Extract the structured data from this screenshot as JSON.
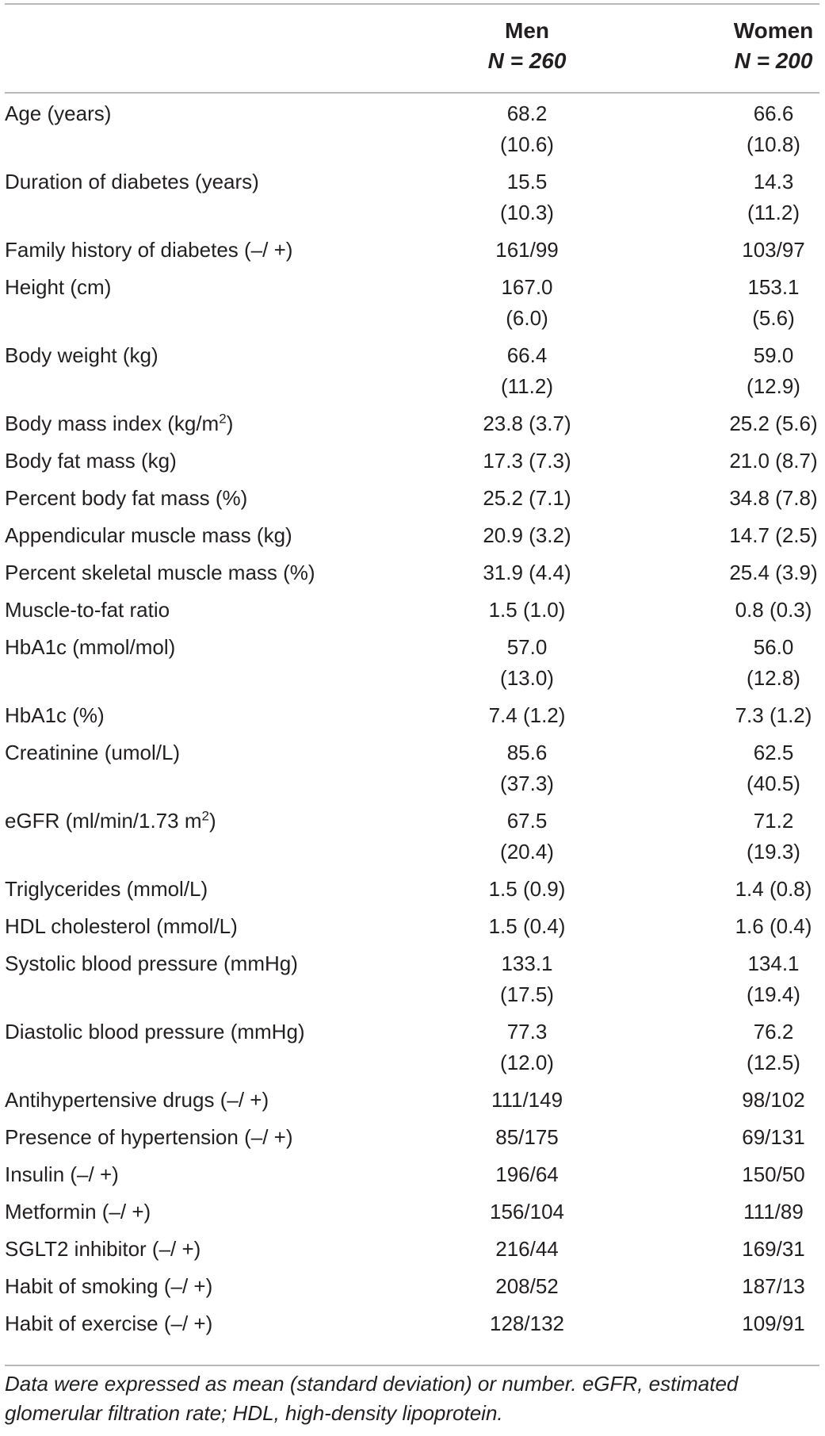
{
  "header": {
    "men_label": "Men",
    "men_n": "N = 260",
    "women_label": "Women",
    "women_n": "N = 200"
  },
  "rows": [
    {
      "label": "Age (years)",
      "men": "68.2\n(10.6)",
      "women": "66.6\n(10.8)"
    },
    {
      "label": "Duration of diabetes (years)",
      "men": "15.5\n(10.3)",
      "women": "14.3\n(11.2)"
    },
    {
      "label": "Family history of diabetes (–/ +)",
      "men": "161/99",
      "women": "103/97"
    },
    {
      "label": "Height (cm)",
      "men": "167.0\n(6.0)",
      "women": "153.1\n(5.6)"
    },
    {
      "label": "Body weight (kg)",
      "men": "66.4\n(11.2)",
      "women": "59.0\n(12.9)"
    },
    {
      "label": "Body mass index (kg/m",
      "sup": "2",
      "label_after": ")",
      "men": "23.8 (3.7)",
      "women": "25.2 (5.6)"
    },
    {
      "label": "Body fat mass (kg)",
      "men": "17.3 (7.3)",
      "women": "21.0 (8.7)"
    },
    {
      "label": "Percent body fat mass (%)",
      "men": "25.2 (7.1)",
      "women": "34.8 (7.8)"
    },
    {
      "label": "Appendicular muscle mass (kg)",
      "men": "20.9 (3.2)",
      "women": "14.7 (2.5)"
    },
    {
      "label": "Percent skeletal muscle mass (%)",
      "men": "31.9 (4.4)",
      "women": "25.4 (3.9)"
    },
    {
      "label": "Muscle-to-fat ratio",
      "men": "1.5 (1.0)",
      "women": "0.8 (0.3)"
    },
    {
      "label": "HbA1c (mmol/mol)",
      "men": "57.0\n(13.0)",
      "women": "56.0\n(12.8)"
    },
    {
      "label": "HbA1c (%)",
      "men": "7.4 (1.2)",
      "women": "7.3 (1.2)"
    },
    {
      "label": "Creatinine (umol/L)",
      "men": "85.6\n(37.3)",
      "women": "62.5\n(40.5)"
    },
    {
      "label": "eGFR (ml/min/1.73 m",
      "sup": "2",
      "label_after": ")",
      "men": "67.5\n(20.4)",
      "women": "71.2\n(19.3)"
    },
    {
      "label": "Triglycerides (mmol/L)",
      "men": "1.5 (0.9)",
      "women": "1.4 (0.8)"
    },
    {
      "label": "HDL cholesterol (mmol/L)",
      "men": "1.5 (0.4)",
      "women": "1.6 (0.4)"
    },
    {
      "label": "Systolic blood pressure (mmHg)",
      "men": "133.1\n(17.5)",
      "women": "134.1\n(19.4)"
    },
    {
      "label": "Diastolic blood pressure (mmHg)",
      "men": "77.3\n(12.0)",
      "women": "76.2\n(12.5)"
    },
    {
      "label": "Antihypertensive drugs (–/ +)",
      "men": "111/149",
      "women": "98/102"
    },
    {
      "label": "Presence of hypertension (–/ +)",
      "men": "85/175",
      "women": "69/131"
    },
    {
      "label": "Insulin (–/ +)",
      "men": "196/64",
      "women": "150/50"
    },
    {
      "label": "Metformin (–/ +)",
      "men": "156/104",
      "women": "111/89"
    },
    {
      "label": "SGLT2 inhibitor (–/ +)",
      "men": "216/44",
      "women": "169/31"
    },
    {
      "label": "Habit of smoking (–/ +)",
      "men": "208/52",
      "women": "187/13"
    },
    {
      "label": "Habit of exercise (–/ +)",
      "men": "128/132",
      "women": "109/91"
    }
  ],
  "footnote": "Data were expressed as mean (standard deviation) or number. eGFR, estimated glomerular filtration rate; HDL, high-density lipoprotein."
}
